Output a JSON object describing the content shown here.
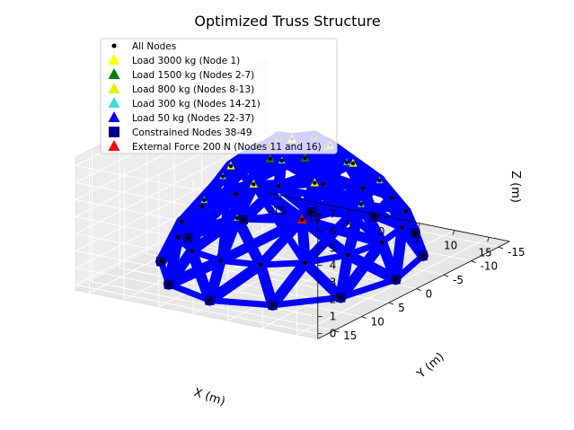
{
  "chart_data": {
    "type": "scatter",
    "projection": "3d",
    "title": "Optimized Truss Structure",
    "xlabel": "X (m)",
    "ylabel": "Y (m)",
    "zlabel": "Z (m)",
    "xlim": [
      -17,
      18
    ],
    "ylim": [
      -17,
      18
    ],
    "zlim": [
      -0.3,
      7.5
    ],
    "x_ticks": [
      -15,
      -10,
      -5,
      0,
      5,
      10,
      15
    ],
    "y_ticks": [
      -15,
      -10,
      -5,
      0,
      5,
      10,
      15
    ],
    "z_ticks": [
      0,
      1,
      2,
      3,
      4,
      5,
      6,
      7
    ],
    "grid": true,
    "legend_position": "top-left",
    "member_color": "#0000ff",
    "legend": [
      {
        "label": "All Nodes",
        "marker": "dot",
        "color": "#000000"
      },
      {
        "label": "Load 3000 kg (Node 1)",
        "marker": "triangle",
        "color": "#ffff00"
      },
      {
        "label": "Load 1500 kg (Nodes 2-7)",
        "marker": "triangle",
        "color": "#008000"
      },
      {
        "label": "Load 800 kg (Nodes 8-13)",
        "marker": "triangle",
        "color": "#e6f000"
      },
      {
        "label": "Load 300 kg (Nodes 14-21)",
        "marker": "triangle",
        "color": "#40e0d0"
      },
      {
        "label": "Load 50 kg (Nodes 22-37)",
        "marker": "triangle",
        "color": "#0000ff"
      },
      {
        "label": "Constrained Nodes 38-49",
        "marker": "square",
        "color": "#00008b"
      },
      {
        "label": "External Force 200 N (Nodes 11 and 16)",
        "marker": "triangle",
        "color": "#ff0000"
      }
    ],
    "node_rings": [
      {
        "nodes": "1",
        "radius": 0,
        "z": 7,
        "count": 1
      },
      {
        "nodes": "2-7",
        "radius": 4,
        "z": 6.5,
        "count": 6
      },
      {
        "nodes": "8-13",
        "radius": 7,
        "z": 5.5,
        "count": 6
      },
      {
        "nodes": "14-21",
        "radius": 10,
        "z": 4,
        "count": 8
      },
      {
        "nodes": "22-37",
        "radius": 13,
        "z": 2,
        "count": 16
      },
      {
        "nodes": "38-49",
        "radius": 15,
        "z": 0,
        "count": 12
      }
    ]
  }
}
